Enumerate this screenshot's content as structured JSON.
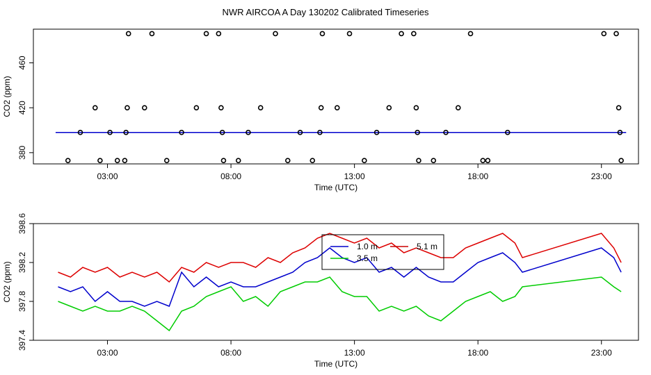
{
  "title": "NWR AIRCOA A  Day 130202  Calibrated Timeseries",
  "chart_data": [
    {
      "type": "scatter",
      "xlabel": "Time (UTC)",
      "ylabel": "CO2 (ppm)",
      "xlim": [
        0,
        24.5
      ],
      "ylim": [
        370,
        490
      ],
      "xticks": [
        3,
        8,
        13,
        18,
        23
      ],
      "xtick_labels": [
        "03:00",
        "08:00",
        "13:00",
        "18:00",
        "23:00"
      ],
      "yticks": [
        380,
        420,
        460
      ],
      "ytick_labels": [
        "380",
        "420",
        "460"
      ],
      "line": {
        "name": "CO2",
        "color": "#0000cc",
        "x_start": 0.9,
        "x_end": 24.0,
        "value": 398.0
      },
      "points": {
        "x": [
          1.4,
          1.9,
          2.5,
          2.7,
          3.1,
          3.4,
          3.7,
          3.75,
          3.8,
          3.85,
          4.5,
          4.8,
          5.4,
          6.0,
          6.6,
          7.0,
          7.5,
          7.6,
          7.65,
          7.7,
          8.3,
          8.7,
          9.2,
          9.8,
          10.3,
          10.8,
          11.3,
          11.6,
          11.65,
          11.7,
          12.3,
          12.8,
          13.4,
          13.9,
          14.4,
          14.9,
          15.4,
          15.5,
          15.55,
          15.6,
          16.2,
          16.7,
          17.2,
          17.7,
          18.2,
          18.4,
          19.2,
          23.1,
          23.6,
          23.7,
          23.75,
          23.8
        ],
        "y": [
          373,
          398,
          420,
          373,
          398,
          373,
          373,
          398,
          420,
          486,
          420,
          486,
          373,
          398,
          420,
          486,
          486,
          420,
          398,
          373,
          373,
          398,
          420,
          486,
          373,
          398,
          373,
          398,
          420,
          486,
          420,
          486,
          373,
          398,
          420,
          486,
          486,
          420,
          398,
          373,
          373,
          398,
          420,
          486,
          373,
          373,
          398,
          486,
          486,
          420,
          398,
          373
        ]
      }
    },
    {
      "type": "line",
      "xlabel": "Time (UTC)",
      "ylabel": "CO2 (ppm)",
      "xlim": [
        0,
        24.5
      ],
      "ylim": [
        397.4,
        398.6
      ],
      "xticks": [
        3,
        8,
        13,
        18,
        23
      ],
      "xtick_labels": [
        "03:00",
        "08:00",
        "13:00",
        "18:00",
        "23:00"
      ],
      "yticks": [
        397.4,
        397.8,
        398.2,
        398.6
      ],
      "ytick_labels": [
        "397.4",
        "397.8",
        "398.2",
        "398.6"
      ],
      "legend": {
        "placement": "top-center",
        "entries": [
          {
            "label": "1.0 m",
            "color": "#0000cc"
          },
          {
            "label": "5.1 m",
            "color": "#cc0000"
          },
          {
            "label": "3.5 m",
            "color": "#00cc00"
          }
        ]
      },
      "series": [
        {
          "name": "5.1 m",
          "color": "#dd0000",
          "x": [
            1.0,
            1.5,
            2.0,
            2.5,
            3.0,
            3.5,
            4.0,
            4.5,
            5.0,
            5.5,
            6.0,
            6.5,
            7.0,
            7.5,
            8.0,
            8.5,
            9.0,
            9.5,
            10.0,
            10.5,
            11.0,
            11.5,
            12.0,
            12.5,
            13.0,
            13.5,
            14.0,
            14.5,
            15.0,
            15.5,
            16.0,
            16.5,
            17.0,
            17.5,
            18.0,
            18.5,
            19.0,
            19.5,
            19.8,
            23.0,
            23.5,
            23.8
          ],
          "y": [
            398.1,
            398.05,
            398.15,
            398.1,
            398.15,
            398.05,
            398.1,
            398.05,
            398.1,
            398.0,
            398.15,
            398.1,
            398.2,
            398.15,
            398.2,
            398.2,
            398.15,
            398.25,
            398.2,
            398.3,
            398.35,
            398.45,
            398.5,
            398.45,
            398.4,
            398.45,
            398.35,
            398.4,
            398.3,
            398.35,
            398.3,
            398.25,
            398.25,
            398.35,
            398.4,
            398.45,
            398.5,
            398.4,
            398.25,
            398.5,
            398.35,
            398.2
          ]
        },
        {
          "name": "1.0 m",
          "color": "#0000cc",
          "x": [
            1.0,
            1.5,
            2.0,
            2.5,
            3.0,
            3.5,
            4.0,
            4.5,
            5.0,
            5.5,
            6.0,
            6.5,
            7.0,
            7.5,
            8.0,
            8.5,
            9.0,
            9.5,
            10.0,
            10.5,
            11.0,
            11.5,
            12.0,
            12.5,
            13.0,
            13.5,
            14.0,
            14.5,
            15.0,
            15.5,
            16.0,
            16.5,
            17.0,
            17.5,
            18.0,
            18.5,
            19.0,
            19.5,
            19.8,
            23.0,
            23.5,
            23.8
          ],
          "y": [
            397.95,
            397.9,
            397.95,
            397.8,
            397.9,
            397.8,
            397.8,
            397.75,
            397.8,
            397.75,
            398.1,
            397.95,
            398.05,
            397.95,
            398.0,
            397.95,
            397.95,
            398.0,
            398.05,
            398.1,
            398.2,
            398.25,
            398.35,
            398.25,
            398.2,
            398.25,
            398.1,
            398.15,
            398.05,
            398.15,
            398.05,
            398.0,
            398.0,
            398.1,
            398.2,
            398.25,
            398.3,
            398.2,
            398.1,
            398.35,
            398.25,
            398.1
          ]
        },
        {
          "name": "3.5 m",
          "color": "#00cc00",
          "x": [
            1.0,
            1.5,
            2.0,
            2.5,
            3.0,
            3.5,
            4.0,
            4.5,
            5.0,
            5.5,
            6.0,
            6.5,
            7.0,
            7.5,
            8.0,
            8.5,
            9.0,
            9.5,
            10.0,
            10.5,
            11.0,
            11.5,
            12.0,
            12.5,
            13.0,
            13.5,
            14.0,
            14.5,
            15.0,
            15.5,
            16.0,
            16.5,
            17.0,
            17.5,
            18.0,
            18.5,
            19.0,
            19.5,
            19.8,
            23.0,
            23.5,
            23.8
          ],
          "y": [
            397.8,
            397.75,
            397.7,
            397.75,
            397.7,
            397.7,
            397.75,
            397.7,
            397.6,
            397.5,
            397.7,
            397.75,
            397.85,
            397.9,
            397.95,
            397.8,
            397.85,
            397.75,
            397.9,
            397.95,
            398.0,
            398.0,
            398.05,
            397.9,
            397.85,
            397.85,
            397.7,
            397.75,
            397.7,
            397.75,
            397.65,
            397.6,
            397.7,
            397.8,
            397.85,
            397.9,
            397.8,
            397.85,
            397.95,
            398.05,
            397.95,
            397.9
          ]
        }
      ]
    }
  ]
}
